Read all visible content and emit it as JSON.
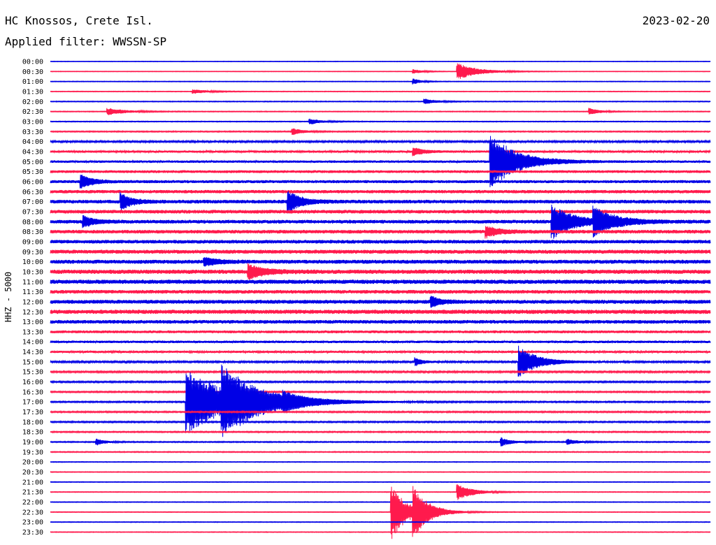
{
  "header": {
    "station": "HC Knossos, Crete Isl.",
    "filter": "Applied filter: WWSSN-SP",
    "date": "2023-02-20"
  },
  "chart_data": {
    "type": "line",
    "title": "HC Knossos, Crete Isl.",
    "subtitle": "Applied filter: WWSSN-SP",
    "ylabel": "HHZ - 5000",
    "date": "2023-02-20",
    "colors": {
      "odd_traces": "#0000e6",
      "even_traces": "#ff1a4d"
    },
    "row_labels": [
      "00:00",
      "00:30",
      "01:00",
      "01:30",
      "02:00",
      "02:30",
      "03:00",
      "03:30",
      "04:00",
      "04:30",
      "05:00",
      "05:30",
      "06:00",
      "06:30",
      "07:00",
      "07:30",
      "08:00",
      "08:30",
      "09:00",
      "09:30",
      "10:00",
      "10:30",
      "11:00",
      "11:30",
      "12:00",
      "12:30",
      "13:00",
      "13:30",
      "14:00",
      "14:30",
      "15:00",
      "15:30",
      "16:00",
      "16:30",
      "17:00",
      "17:30",
      "18:00",
      "18:30",
      "19:00",
      "19:30",
      "20:00",
      "20:30",
      "21:00",
      "21:30",
      "22:00",
      "22:30",
      "23:00",
      "23:30"
    ],
    "noise_level": [
      0.4,
      0.4,
      0.5,
      0.5,
      0.6,
      0.6,
      0.6,
      0.8,
      1.4,
      1.6,
      1.8,
      2.0,
      2.2,
      2.4,
      2.6,
      2.6,
      2.6,
      2.6,
      2.6,
      2.8,
      2.8,
      3.0,
      3.0,
      2.6,
      2.8,
      3.0,
      2.6,
      2.0,
      1.8,
      1.6,
      1.4,
      1.2,
      1.1,
      1.0,
      1.0,
      1.0,
      1.0,
      0.9,
      0.8,
      0.7,
      0.5,
      0.5,
      0.5,
      0.5,
      0.5,
      0.5,
      0.5,
      0.5
    ],
    "events": [
      {
        "row": 1,
        "minute": 18.5,
        "amplitude": 12,
        "duration_min": 2.0
      },
      {
        "row": 1,
        "minute": 16.5,
        "amplitude": 3,
        "duration_min": 1.0
      },
      {
        "row": 2,
        "minute": 16.5,
        "amplitude": 4,
        "duration_min": 0.8
      },
      {
        "row": 3,
        "minute": 6.5,
        "amplitude": 3,
        "duration_min": 1.5
      },
      {
        "row": 4,
        "minute": 17.0,
        "amplitude": 4,
        "duration_min": 1.2
      },
      {
        "row": 5,
        "minute": 2.6,
        "amplitude": 5,
        "duration_min": 1.8
      },
      {
        "row": 5,
        "minute": 24.5,
        "amplitude": 5,
        "duration_min": 1.0
      },
      {
        "row": 6,
        "minute": 11.8,
        "amplitude": 4,
        "duration_min": 1.2
      },
      {
        "row": 7,
        "minute": 11.0,
        "amplitude": 5,
        "duration_min": 1.0
      },
      {
        "row": 9,
        "minute": 16.5,
        "amplitude": 6,
        "duration_min": 1.0
      },
      {
        "row": 10,
        "minute": 20.0,
        "amplitude": 40,
        "duration_min": 2.5
      },
      {
        "row": 12,
        "minute": 1.4,
        "amplitude": 10,
        "duration_min": 1.0
      },
      {
        "row": 14,
        "minute": 3.2,
        "amplitude": 12,
        "duration_min": 1.0
      },
      {
        "row": 14,
        "minute": 10.8,
        "amplitude": 16,
        "duration_min": 1.2
      },
      {
        "row": 16,
        "minute": 22.8,
        "amplitude": 25,
        "duration_min": 2.0
      },
      {
        "row": 16,
        "minute": 24.7,
        "amplitude": 20,
        "duration_min": 2.0
      },
      {
        "row": 16,
        "minute": 1.5,
        "amplitude": 8,
        "duration_min": 1.0
      },
      {
        "row": 17,
        "minute": 19.8,
        "amplitude": 8,
        "duration_min": 1.2
      },
      {
        "row": 20,
        "minute": 7.0,
        "amplitude": 6,
        "duration_min": 1.2
      },
      {
        "row": 21,
        "minute": 9.0,
        "amplitude": 10,
        "duration_min": 1.5
      },
      {
        "row": 24,
        "minute": 17.3,
        "amplitude": 7,
        "duration_min": 1.0
      },
      {
        "row": 30,
        "minute": 16.6,
        "amplitude": 6,
        "duration_min": 0.6
      },
      {
        "row": 30,
        "minute": 21.3,
        "amplitude": 22,
        "duration_min": 1.8
      },
      {
        "row": 34,
        "minute": 6.2,
        "amplitude": 45,
        "duration_min": 4.5
      },
      {
        "row": 34,
        "minute": 7.8,
        "amplitude": 35,
        "duration_min": 3.5
      },
      {
        "row": 34,
        "minute": 10.6,
        "amplitude": 7,
        "duration_min": 1.5
      },
      {
        "row": 38,
        "minute": 2.1,
        "amplitude": 5,
        "duration_min": 0.8
      },
      {
        "row": 38,
        "minute": 20.5,
        "amplitude": 6,
        "duration_min": 1.0
      },
      {
        "row": 38,
        "minute": 23.5,
        "amplitude": 4,
        "duration_min": 1.0
      },
      {
        "row": 43,
        "minute": 18.5,
        "amplitude": 12,
        "duration_min": 1.5
      },
      {
        "row": 45,
        "minute": 15.5,
        "amplitude": 40,
        "duration_min": 1.5
      },
      {
        "row": 45,
        "minute": 16.5,
        "amplitude": 30,
        "duration_min": 1.5
      }
    ]
  }
}
